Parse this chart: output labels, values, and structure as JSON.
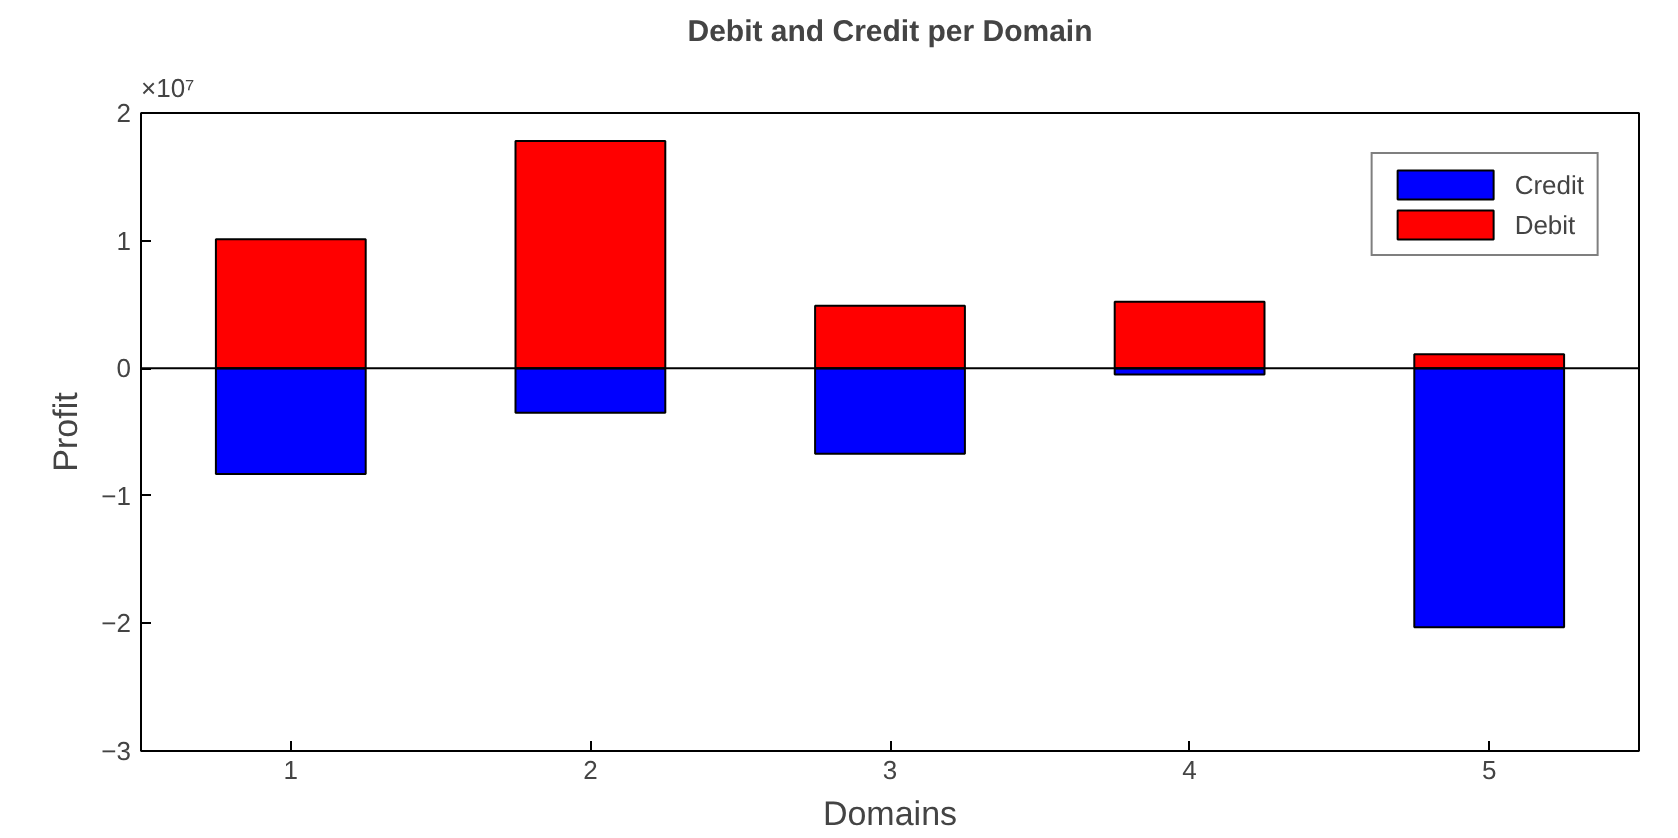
{
  "chart_data": {
    "type": "bar",
    "title": "Debit and Credit per Domain",
    "xlabel": "Domains",
    "ylabel": "Profit",
    "categories": [
      "1",
      "2",
      "3",
      "4",
      "5"
    ],
    "series": [
      {
        "name": "Credit",
        "color": "#0000ff",
        "values": [
          -0.83,
          -0.35,
          -0.67,
          -0.05,
          -2.03
        ]
      },
      {
        "name": "Debit",
        "color": "#ff0000",
        "values": [
          1.01,
          1.78,
          0.49,
          0.52,
          0.11
        ]
      }
    ],
    "stacked": true,
    "ylim": [
      -3,
      2
    ],
    "yticks": [
      -3,
      -2,
      -1,
      0,
      1,
      2
    ],
    "annotations": [
      "×10⁷"
    ],
    "ref_lines": [
      {
        "axis": "y",
        "value": 0,
        "label": null,
        "color": "#000000"
      }
    ],
    "grid": false,
    "legend": "top right"
  }
}
